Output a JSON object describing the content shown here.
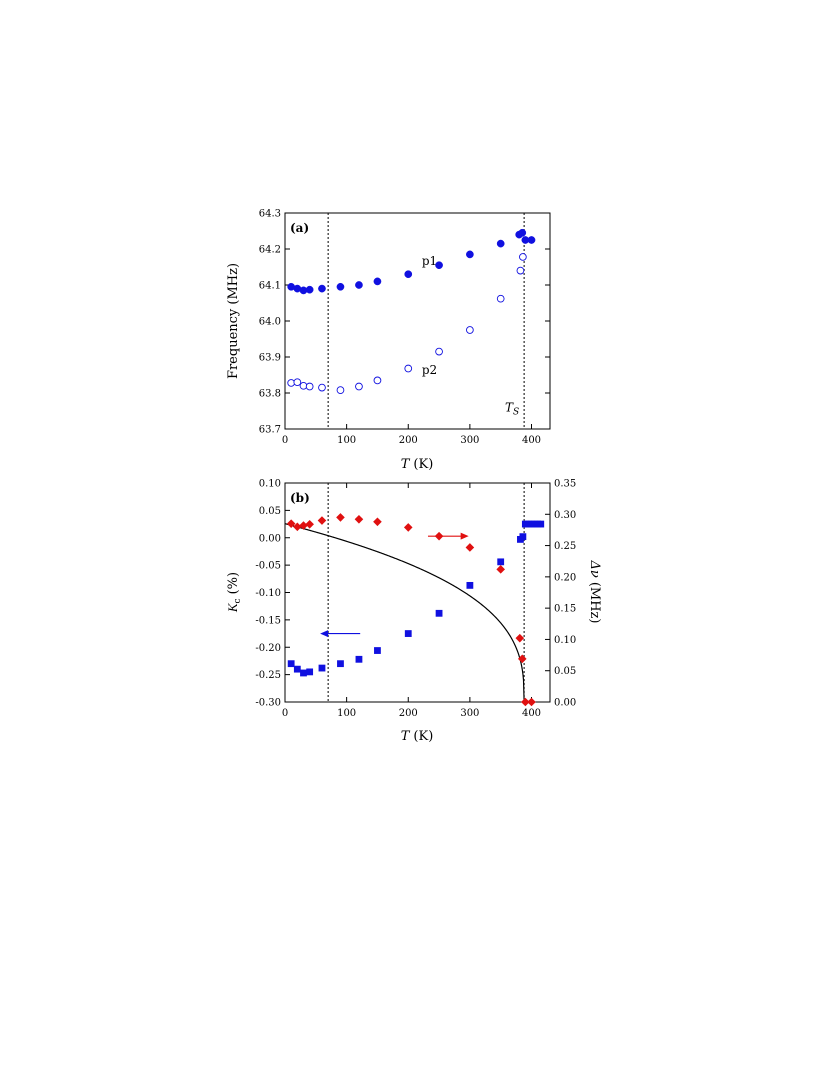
{
  "chart_data": [
    {
      "panel": "(a)",
      "type": "scatter",
      "title": "",
      "xlabel_italic": "T",
      "xlabel_unit": "(K)",
      "ylabel": "Frequency (MHz)",
      "xlim": [
        0,
        430
      ],
      "ylim": [
        63.7,
        64.3
      ],
      "xticks": [
        0,
        100,
        200,
        300,
        400
      ],
      "yticks": [
        63.7,
        63.8,
        63.9,
        64.0,
        64.1,
        64.2,
        64.3
      ],
      "ytick_labels": [
        "63.7",
        "63.8",
        "63.9",
        "64.0",
        "64.1",
        "64.2",
        "64.3"
      ],
      "grid": false,
      "vlines": [
        70,
        388
      ],
      "annotations": [
        {
          "text": "p1",
          "x": 222,
          "y": 64.155
        },
        {
          "text": "p2",
          "x": 222,
          "y": 63.853
        },
        {
          "text": "T",
          "sub": "S",
          "x": 357,
          "y": 63.748
        }
      ],
      "series": [
        {
          "name": "p1",
          "marker": "filled-circle",
          "color": "#1010e0",
          "x": [
            10,
            20,
            30,
            40,
            60,
            90,
            120,
            150,
            200,
            250,
            300,
            350,
            380,
            385,
            390,
            400
          ],
          "y": [
            64.095,
            64.09,
            64.085,
            64.087,
            64.09,
            64.095,
            64.1,
            64.11,
            64.13,
            64.155,
            64.185,
            64.215,
            64.24,
            64.245,
            64.225,
            64.225
          ]
        },
        {
          "name": "p2",
          "marker": "open-circle",
          "color": "#1010e0",
          "x": [
            10,
            20,
            30,
            40,
            60,
            90,
            120,
            150,
            200,
            250,
            300,
            350,
            382,
            386
          ],
          "y": [
            63.828,
            63.83,
            63.82,
            63.818,
            63.815,
            63.808,
            63.818,
            63.835,
            63.868,
            63.915,
            63.975,
            64.062,
            64.14,
            64.178
          ]
        }
      ]
    },
    {
      "panel": "(b)",
      "type": "scatter",
      "title": "",
      "xlabel_italic": "T",
      "xlabel_unit": "(K)",
      "ylabel_left": "K_c (%)",
      "ylabel_left_symbol": "K",
      "ylabel_left_sub": "c",
      "ylabel_left_unit": "(%)",
      "ylabel_right": "Δν (MHz)",
      "ylabel_right_symbol": "Δν",
      "ylabel_right_unit": "(MHz)",
      "xlim": [
        0,
        430
      ],
      "ylim_left": [
        -0.3,
        0.1
      ],
      "ylim_right": [
        0,
        0.35
      ],
      "xticks": [
        0,
        100,
        200,
        300,
        400
      ],
      "yticks_left": [
        -0.3,
        -0.25,
        -0.2,
        -0.15,
        -0.1,
        -0.05,
        0.0,
        0.05,
        0.1
      ],
      "ytick_labels_left": [
        "-0.30",
        "-0.25",
        "-0.20",
        "-0.15",
        "-0.10",
        "-0.05",
        "0.00",
        "0.05",
        "0.10"
      ],
      "yticks_right": [
        0,
        0.05,
        0.1,
        0.15,
        0.2,
        0.25,
        0.3,
        0.35
      ],
      "ytick_labels_right": [
        "0.00",
        "0.05",
        "0.10",
        "0.15",
        "0.20",
        "0.25",
        "0.30",
        "0.35"
      ],
      "grid": false,
      "vlines": [
        70,
        388
      ],
      "arrows": [
        {
          "direction": "right",
          "color": "#e01010",
          "x_from": 232,
          "x_to": 298,
          "y_right": 0.265
        },
        {
          "direction": "left",
          "color": "#1010e0",
          "x_from": 122,
          "x_to": 57,
          "y_left": -0.175
        }
      ],
      "fit_curve": {
        "axis": "right",
        "color": "#000000",
        "Ts": 388,
        "amplitude": 0.285,
        "exponent": 0.35,
        "x_start": 0
      },
      "series": [
        {
          "name": "",
          "axis": "left",
          "marker": "filled-square",
          "color": "#1010e0",
          "x": [
            10,
            20,
            30,
            40,
            60,
            90,
            120,
            150,
            200,
            250,
            300,
            350,
            382,
            386,
            390,
            395,
            400,
            405,
            410,
            415
          ],
          "y": [
            -0.23,
            -0.24,
            -0.247,
            -0.245,
            -0.238,
            -0.23,
            -0.222,
            -0.206,
            -0.175,
            -0.138,
            -0.087,
            -0.044,
            -0.003,
            0.002,
            0.025,
            0.025,
            0.025,
            0.025,
            0.025,
            0.025
          ]
        },
        {
          "name": "",
          "axis": "right",
          "marker": "filled-diamond",
          "color": "#e01010",
          "x": [
            10,
            20,
            30,
            40,
            60,
            90,
            120,
            150,
            200,
            250,
            300,
            350,
            381,
            385,
            390,
            400
          ],
          "y": [
            0.285,
            0.28,
            0.282,
            0.284,
            0.29,
            0.295,
            0.292,
            0.288,
            0.279,
            0.265,
            0.247,
            0.212,
            0.102,
            0.069,
            0.0,
            0.0
          ]
        }
      ]
    }
  ]
}
